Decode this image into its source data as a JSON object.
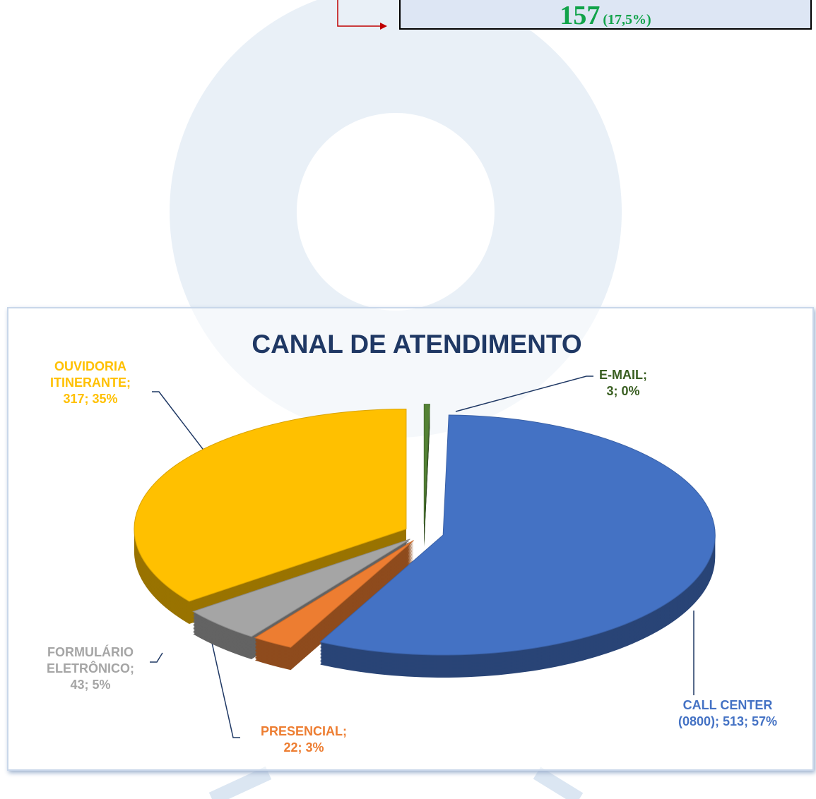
{
  "callout": {
    "value": "157",
    "detail": "(17,5%)"
  },
  "chart_data": {
    "type": "pie3d",
    "title": "CANAL DE ATENDIMENTO",
    "values": [
      3,
      513,
      22,
      43,
      317
    ],
    "value_labels": [
      "E-MAIL; 3; 0%",
      "CALL CENTER (0800); 513; 57%",
      "PRESENCIAL; 22; 3%",
      "FORMULÁRIO ELETRÔNICO; 43; 5%",
      "OUVIDORIA ITINERANTE; 317; 35%"
    ],
    "colors": [
      "#548235",
      "#4472c4",
      "#ed7d31",
      "#a5a5a5",
      "#ffc000"
    ],
    "label_colors": [
      "#3a5f22",
      "#4472c4",
      "#ed7d31",
      "#a5a5a5",
      "#ffc000"
    ]
  }
}
